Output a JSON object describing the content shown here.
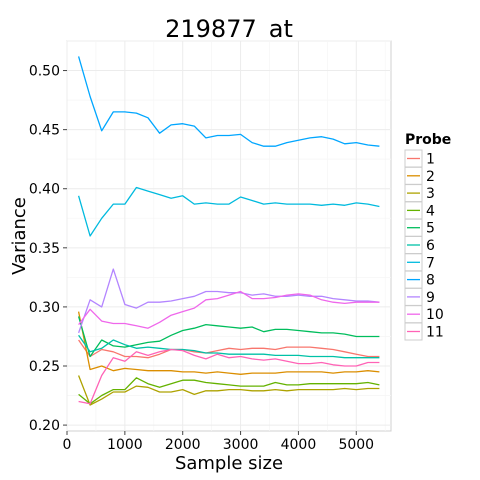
{
  "chart_data": {
    "type": "line",
    "title": "219877_at",
    "xlabel": "Sample size",
    "ylabel": "Variance",
    "xlim": [
      0,
      5600
    ],
    "ylim": [
      0.195,
      0.525
    ],
    "x_ticks": [
      0,
      1000,
      2000,
      3000,
      4000,
      5000
    ],
    "x_tick_labels": [
      "0",
      "1000",
      "2000",
      "3000",
      "4000",
      "5000"
    ],
    "y_ticks": [
      0.2,
      0.25,
      0.3,
      0.35,
      0.4,
      0.45,
      0.5
    ],
    "y_tick_labels": [
      "0.20",
      "0.25",
      "0.30",
      "0.35",
      "0.40",
      "0.45",
      "0.50"
    ],
    "grid": true,
    "legend": {
      "title": "Probe",
      "position": "right"
    },
    "x": [
      200,
      400,
      600,
      800,
      1000,
      1200,
      1400,
      1600,
      1800,
      2000,
      2200,
      2400,
      2600,
      2800,
      3000,
      3200,
      3400,
      3600,
      3800,
      4000,
      4200,
      4400,
      4600,
      4800,
      5000,
      5200,
      5400
    ],
    "series": [
      {
        "name": "1",
        "color": "#F8766D",
        "values": [
          0.272,
          0.258,
          0.264,
          0.262,
          0.258,
          0.258,
          0.257,
          0.26,
          0.264,
          0.264,
          0.262,
          0.261,
          0.263,
          0.265,
          0.264,
          0.265,
          0.265,
          0.264,
          0.266,
          0.266,
          0.266,
          0.265,
          0.264,
          0.262,
          0.26,
          0.258,
          0.258
        ]
      },
      {
        "name": "2",
        "color": "#DB8E00",
        "values": [
          0.296,
          0.247,
          0.25,
          0.246,
          0.248,
          0.247,
          0.246,
          0.246,
          0.246,
          0.245,
          0.245,
          0.244,
          0.245,
          0.244,
          0.243,
          0.244,
          0.244,
          0.244,
          0.245,
          0.245,
          0.245,
          0.245,
          0.244,
          0.245,
          0.245,
          0.246,
          0.245
        ]
      },
      {
        "name": "3",
        "color": "#AEA200",
        "values": [
          0.242,
          0.217,
          0.222,
          0.228,
          0.228,
          0.233,
          0.232,
          0.228,
          0.228,
          0.23,
          0.226,
          0.229,
          0.229,
          0.23,
          0.23,
          0.229,
          0.229,
          0.23,
          0.229,
          0.23,
          0.23,
          0.23,
          0.23,
          0.231,
          0.23,
          0.231,
          0.231
        ]
      },
      {
        "name": "4",
        "color": "#64B200",
        "values": [
          0.226,
          0.218,
          0.225,
          0.23,
          0.23,
          0.24,
          0.235,
          0.232,
          0.235,
          0.238,
          0.238,
          0.236,
          0.235,
          0.234,
          0.233,
          0.233,
          0.233,
          0.236,
          0.234,
          0.234,
          0.235,
          0.235,
          0.235,
          0.235,
          0.235,
          0.236,
          0.234
        ]
      },
      {
        "name": "5",
        "color": "#00BD5C",
        "values": [
          0.292,
          0.258,
          0.272,
          0.267,
          0.266,
          0.268,
          0.27,
          0.271,
          0.276,
          0.28,
          0.282,
          0.285,
          0.284,
          0.283,
          0.282,
          0.283,
          0.279,
          0.281,
          0.281,
          0.28,
          0.279,
          0.278,
          0.278,
          0.277,
          0.275,
          0.275,
          0.275
        ]
      },
      {
        "name": "6",
        "color": "#00C1A7",
        "values": [
          0.276,
          0.262,
          0.265,
          0.272,
          0.268,
          0.265,
          0.266,
          0.265,
          0.264,
          0.264,
          0.263,
          0.261,
          0.261,
          0.26,
          0.26,
          0.26,
          0.26,
          0.259,
          0.259,
          0.259,
          0.258,
          0.258,
          0.258,
          0.257,
          0.257,
          0.257,
          0.257
        ]
      },
      {
        "name": "7",
        "color": "#00BADE",
        "values": [
          0.394,
          0.36,
          0.375,
          0.387,
          0.387,
          0.401,
          0.398,
          0.395,
          0.392,
          0.394,
          0.387,
          0.388,
          0.387,
          0.387,
          0.393,
          0.39,
          0.387,
          0.388,
          0.387,
          0.387,
          0.387,
          0.386,
          0.387,
          0.386,
          0.388,
          0.387,
          0.385
        ]
      },
      {
        "name": "8",
        "color": "#00A6FF",
        "values": [
          0.512,
          0.478,
          0.449,
          0.465,
          0.465,
          0.464,
          0.46,
          0.447,
          0.454,
          0.455,
          0.453,
          0.443,
          0.445,
          0.445,
          0.446,
          0.439,
          0.436,
          0.436,
          0.439,
          0.441,
          0.443,
          0.444,
          0.442,
          0.438,
          0.439,
          0.437,
          0.436
        ]
      },
      {
        "name": "9",
        "color": "#B385FF",
        "values": [
          0.278,
          0.306,
          0.3,
          0.332,
          0.302,
          0.299,
          0.304,
          0.304,
          0.305,
          0.307,
          0.309,
          0.313,
          0.313,
          0.312,
          0.312,
          0.31,
          0.311,
          0.309,
          0.309,
          0.31,
          0.309,
          0.309,
          0.307,
          0.306,
          0.305,
          0.305,
          0.304
        ]
      },
      {
        "name": "10",
        "color": "#EF67EB",
        "values": [
          0.285,
          0.298,
          0.288,
          0.286,
          0.286,
          0.284,
          0.282,
          0.287,
          0.293,
          0.296,
          0.299,
          0.306,
          0.307,
          0.31,
          0.313,
          0.307,
          0.307,
          0.308,
          0.31,
          0.311,
          0.31,
          0.306,
          0.304,
          0.303,
          0.304,
          0.304,
          0.304
        ]
      },
      {
        "name": "11",
        "color": "#FF63B6",
        "values": [
          0.22,
          0.218,
          0.242,
          0.257,
          0.254,
          0.262,
          0.259,
          0.262,
          0.264,
          0.263,
          0.259,
          0.256,
          0.26,
          0.257,
          0.258,
          0.256,
          0.255,
          0.256,
          0.254,
          0.252,
          0.252,
          0.253,
          0.251,
          0.25,
          0.25,
          0.253,
          0.253
        ]
      }
    ]
  }
}
